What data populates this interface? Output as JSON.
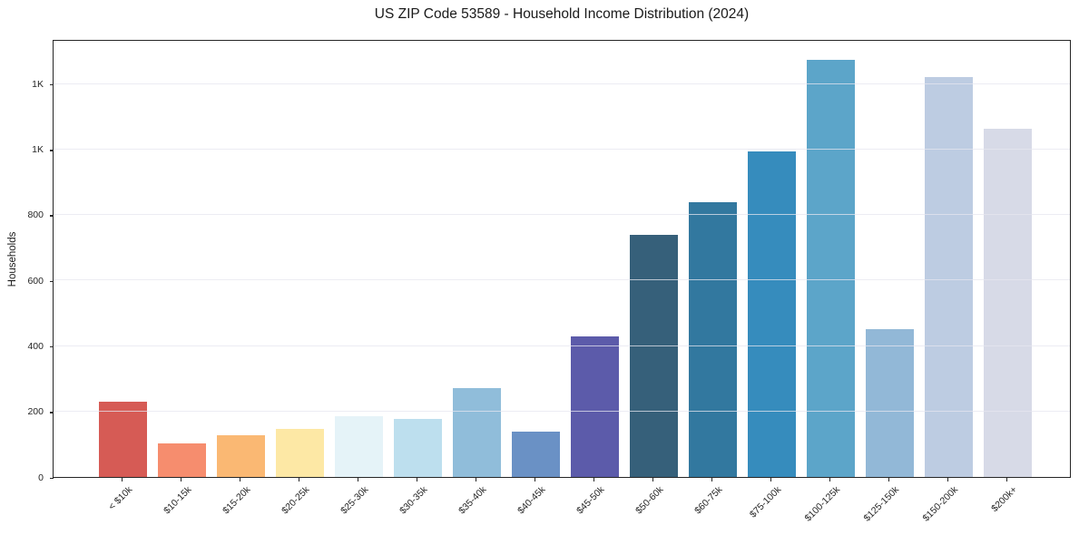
{
  "chart_data": {
    "type": "bar",
    "title": "US ZIP Code 53589 - Household Income Distribution (2024)",
    "xlabel": "",
    "ylabel": "Households",
    "categories": [
      "< $10k",
      "$10-15k",
      "$15-20k",
      "$20-25k",
      "$25-30k",
      "$30-35k",
      "$35-40k",
      "$40-45k",
      "$45-50k",
      "$50-60k",
      "$60-75k",
      "$75-100k",
      "$100-125k",
      "$125-150k",
      "$150-200k",
      "$200k+"
    ],
    "values": [
      230,
      103,
      128,
      146,
      186,
      178,
      272,
      139,
      430,
      740,
      838,
      995,
      1273,
      450,
      1220,
      1064
    ],
    "bar_colors": [
      "#d65b55",
      "#f68d6e",
      "#fab873",
      "#fde8a5",
      "#e5f3f8",
      "#bddfee",
      "#90bdda",
      "#6a91c5",
      "#5c5baa",
      "#36607a",
      "#32789f",
      "#368cbd",
      "#5ca5c9",
      "#92b8d7",
      "#bdcce2",
      "#d7dae7"
    ],
    "ylim": [
      0,
      1337
    ],
    "y_ticks": [
      {
        "value": 0,
        "label": "0"
      },
      {
        "value": 200,
        "label": "200"
      },
      {
        "value": 400,
        "label": "400"
      },
      {
        "value": 600,
        "label": "600"
      },
      {
        "value": 800,
        "label": "800"
      },
      {
        "value": 1000,
        "label": "1K"
      },
      {
        "value": 1200,
        "label": "1K"
      }
    ],
    "grid": "horizontal",
    "legend": "none",
    "bar_width_ratio": 0.81
  }
}
